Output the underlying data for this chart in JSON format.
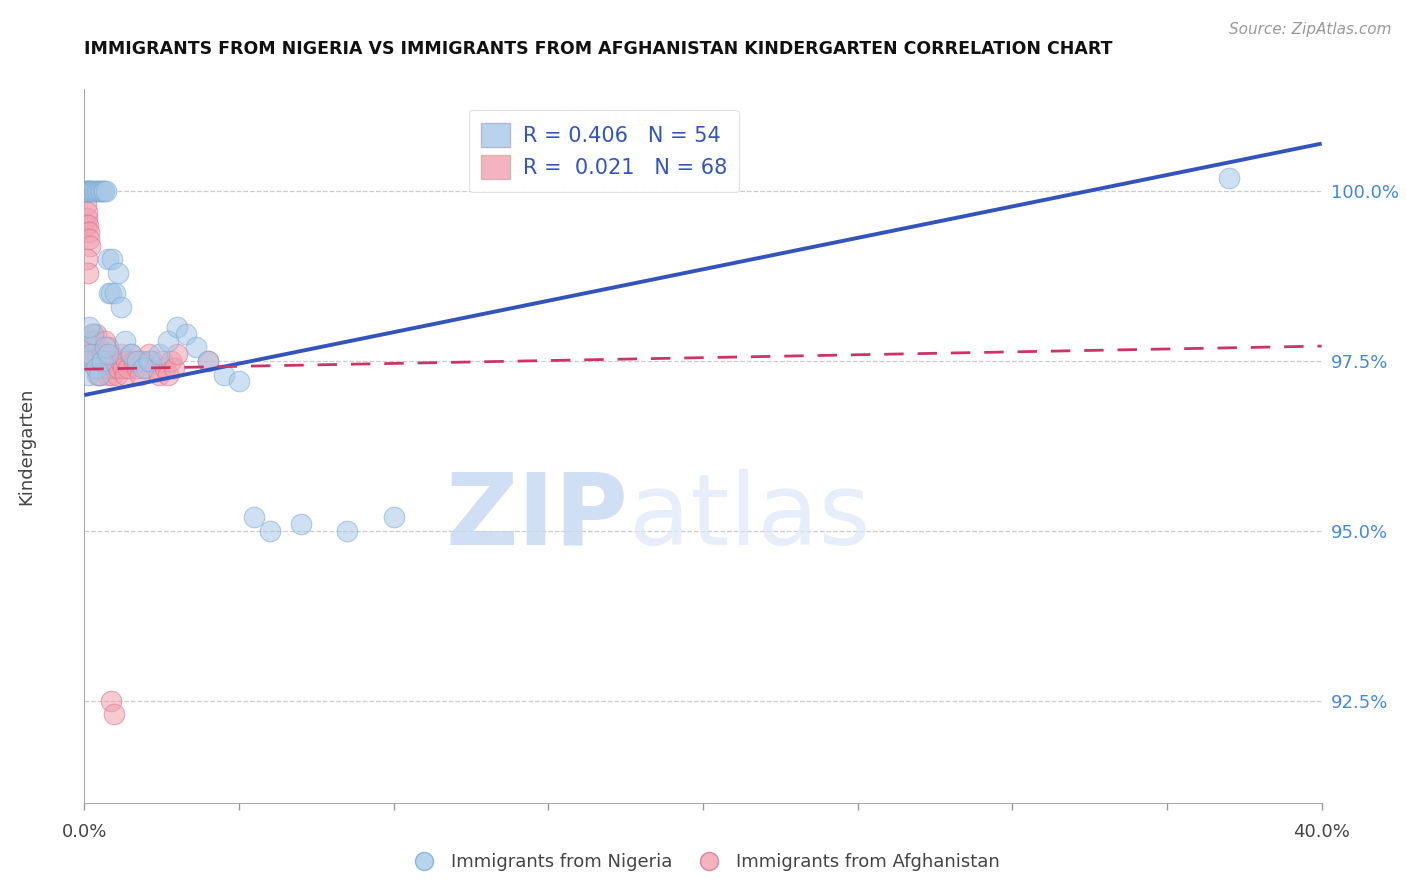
{
  "title": "IMMIGRANTS FROM NIGERIA VS IMMIGRANTS FROM AFGHANISTAN KINDERGARTEN CORRELATION CHART",
  "source": "Source: ZipAtlas.com",
  "ylabel": "Kindergarten",
  "ytick_values": [
    92.5,
    95.0,
    97.5,
    100.0
  ],
  "xlim": [
    0.0,
    40.0
  ],
  "ylim": [
    91.0,
    101.5
  ],
  "legend1_label": "R = 0.406   N = 54",
  "legend2_label": "R =  0.021   N = 68",
  "nigeria_color": "#a8c8e8",
  "afghanistan_color": "#f0a0b0",
  "nigeria_edge_color": "#7aaacf",
  "afghanistan_edge_color": "#d97090",
  "nigeria_line_color": "#3355bb",
  "afghanistan_line_color": "#cc3366",
  "watermark_zip": "ZIP",
  "watermark_atlas": "atlas",
  "nigeria_x": [
    0.05,
    0.08,
    0.1,
    0.12,
    0.15,
    0.18,
    0.2,
    0.25,
    0.3,
    0.35,
    0.4,
    0.45,
    0.5,
    0.55,
    0.6,
    0.65,
    0.7,
    0.75,
    0.8,
    0.85,
    0.9,
    1.0,
    1.1,
    1.2,
    1.3,
    1.5,
    1.7,
    1.9,
    2.1,
    2.4,
    2.7,
    3.0,
    3.3,
    3.6,
    4.0,
    4.5,
    5.0,
    5.5,
    6.0,
    7.0,
    8.5,
    10.0,
    0.06,
    0.09,
    0.13,
    0.22,
    0.28,
    0.38,
    0.48,
    0.58,
    0.68,
    0.78,
    37.0,
    0.15
  ],
  "nigeria_y": [
    100.0,
    100.0,
    100.0,
    100.0,
    100.0,
    100.0,
    100.0,
    100.0,
    100.0,
    100.0,
    100.0,
    100.0,
    100.0,
    100.0,
    100.0,
    100.0,
    100.0,
    99.0,
    98.5,
    98.5,
    99.0,
    98.5,
    98.8,
    98.3,
    97.8,
    97.6,
    97.5,
    97.4,
    97.5,
    97.6,
    97.8,
    98.0,
    97.9,
    97.7,
    97.5,
    97.3,
    97.2,
    95.2,
    95.0,
    95.1,
    95.0,
    95.2,
    97.8,
    97.5,
    97.3,
    97.6,
    97.9,
    97.4,
    97.3,
    97.5,
    97.7,
    97.6,
    100.2,
    98.0
  ],
  "afghanistan_x": [
    0.04,
    0.06,
    0.08,
    0.1,
    0.12,
    0.14,
    0.16,
    0.18,
    0.2,
    0.22,
    0.25,
    0.28,
    0.3,
    0.32,
    0.35,
    0.38,
    0.4,
    0.42,
    0.45,
    0.48,
    0.5,
    0.55,
    0.6,
    0.65,
    0.7,
    0.75,
    0.8,
    0.85,
    0.9,
    0.95,
    1.0,
    1.05,
    1.1,
    1.15,
    1.2,
    1.25,
    1.3,
    1.35,
    1.4,
    1.5,
    1.6,
    1.7,
    1.8,
    1.9,
    2.0,
    2.1,
    2.2,
    2.3,
    2.4,
    2.5,
    2.6,
    2.7,
    2.8,
    2.9,
    3.0,
    4.0,
    0.07,
    0.09,
    0.11,
    0.17,
    0.27,
    0.37,
    0.47,
    0.57,
    0.67,
    0.77,
    0.87,
    0.97
  ],
  "afghanistan_y": [
    99.5,
    99.8,
    99.6,
    99.7,
    99.5,
    99.4,
    99.3,
    99.2,
    97.8,
    97.6,
    97.9,
    97.7,
    97.5,
    97.8,
    97.6,
    97.4,
    97.3,
    97.5,
    97.6,
    97.4,
    97.3,
    97.5,
    97.4,
    97.6,
    97.5,
    97.3,
    97.4,
    97.5,
    97.3,
    97.4,
    97.5,
    97.3,
    97.4,
    97.5,
    97.6,
    97.4,
    97.3,
    97.5,
    97.4,
    97.6,
    97.5,
    97.4,
    97.3,
    97.5,
    97.4,
    97.6,
    97.5,
    97.4,
    97.3,
    97.5,
    97.4,
    97.3,
    97.5,
    97.4,
    97.6,
    97.5,
    97.8,
    99.0,
    98.8,
    97.6,
    97.8,
    97.9,
    97.7,
    97.6,
    97.8,
    97.7,
    92.5,
    92.3
  ],
  "nig_line_x0": 0.0,
  "nig_line_y0": 97.0,
  "nig_line_x1": 40.0,
  "nig_line_y1": 100.7,
  "afg_line_x0": 0.0,
  "afg_line_y0": 97.38,
  "afg_line_x1": 40.0,
  "afg_line_y1": 97.72
}
